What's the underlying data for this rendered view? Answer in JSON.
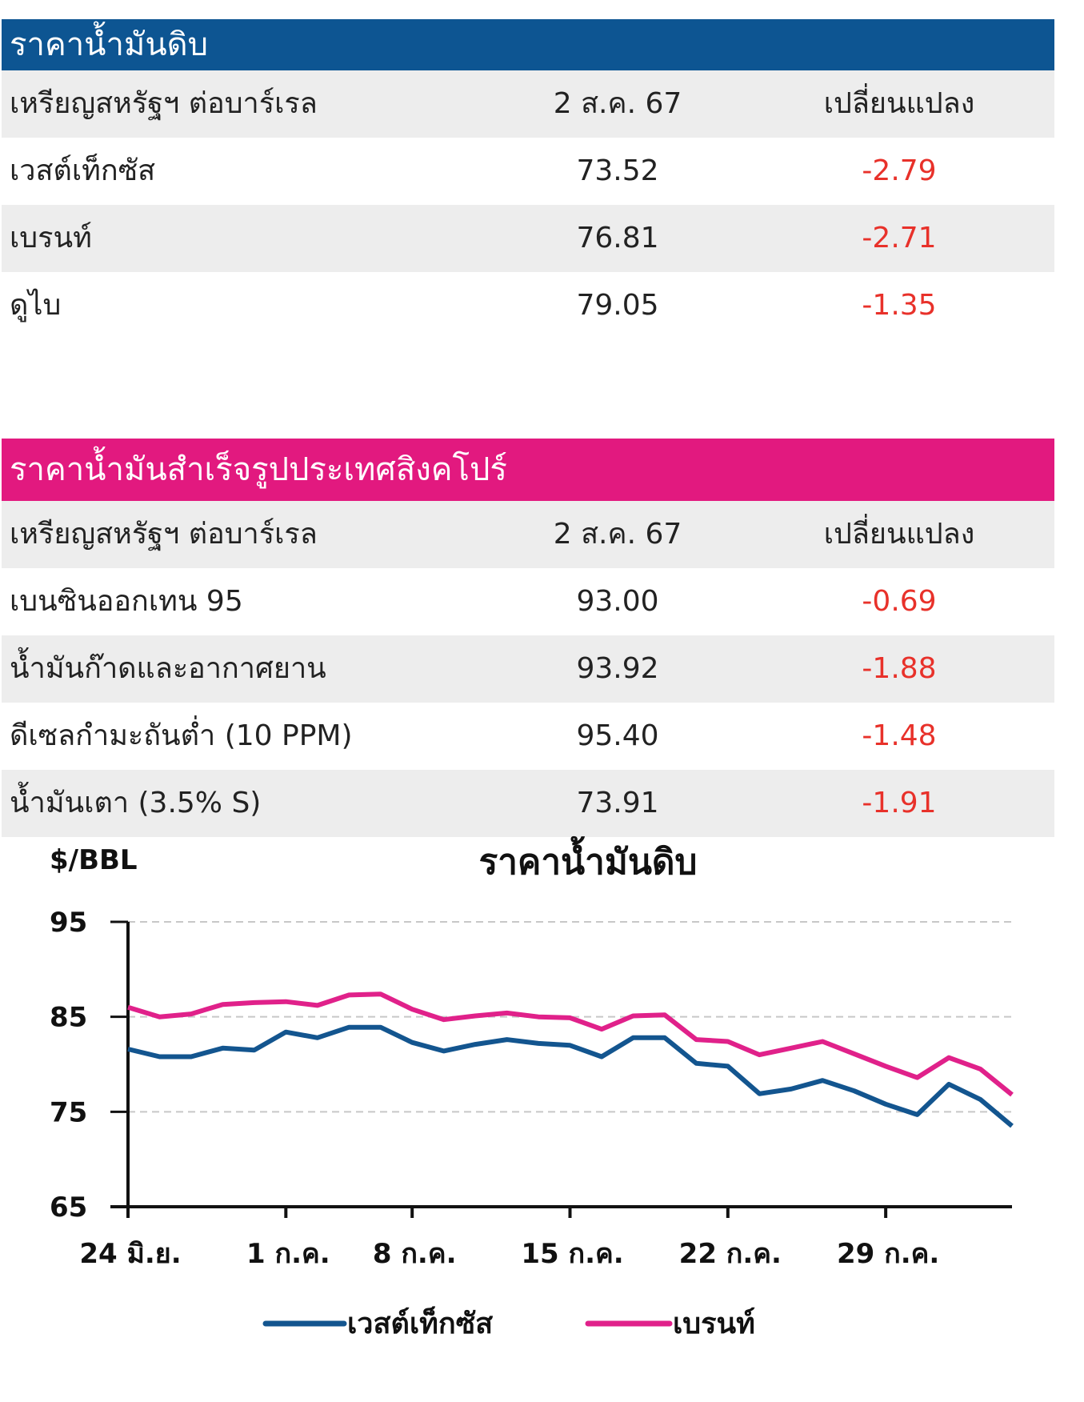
{
  "colors": {
    "crude_header": "#0d5592",
    "products_header": "#e2197f",
    "wti": "#13558f",
    "brent": "#e0218a",
    "negative": "#e8312a"
  },
  "crude": {
    "title": "ราคาน้ำมันดิบ",
    "col_unit": "เหรียญสหรัฐฯ ต่อบาร์เรล",
    "col_date": "2 ส.ค. 67",
    "col_change": "เปลี่ยนแปลง",
    "rows": [
      {
        "name": "เวสต์เท็กซัส",
        "price": "73.52",
        "change": "-2.79"
      },
      {
        "name": "เบรนท์",
        "price": "76.81",
        "change": "-2.71"
      },
      {
        "name": "ดูไบ",
        "price": "79.05",
        "change": "-1.35"
      }
    ]
  },
  "products": {
    "title": "ราคาน้ำมันสำเร็จรูปประเทศสิงคโปร์",
    "col_unit": "เหรียญสหรัฐฯ ต่อบาร์เรล",
    "col_date": "2 ส.ค. 67",
    "col_change": "เปลี่ยนแปลง",
    "rows": [
      {
        "name": "เบนซินออกเทน 95",
        "price": "93.00",
        "change": "-0.69"
      },
      {
        "name": "น้ำมันก๊าดและอากาศยาน",
        "price": "93.92",
        "change": "-1.88"
      },
      {
        "name": "ดีเซลกำมะถันต่ำ (10 PPM)",
        "price": "95.40",
        "change": "-1.48"
      },
      {
        "name": "น้ำมันเตา (3.5% S)",
        "price": "73.91",
        "change": "-1.91"
      }
    ]
  },
  "chart_data": {
    "type": "line",
    "title": "ราคาน้ำมันดิบ",
    "ylabel": "$/BBL",
    "ylim": [
      65,
      95
    ],
    "yticks": [
      "95",
      "85",
      "75",
      "65"
    ],
    "grid": "horizontal dashed",
    "legend_position": "bottom",
    "x": [
      "24 มิ.ย.",
      "25 มิ.ย.",
      "26 มิ.ย.",
      "27 มิ.ย.",
      "28 มิ.ย.",
      "1 ก.ค.",
      "2 ก.ค.",
      "3 ก.ค.",
      "5 ก.ค.",
      "8 ก.ค.",
      "9 ก.ค.",
      "10 ก.ค.",
      "11 ก.ค.",
      "12 ก.ค.",
      "15 ก.ค.",
      "16 ก.ค.",
      "17 ก.ค.",
      "18 ก.ค.",
      "19 ก.ค.",
      "22 ก.ค.",
      "23 ก.ค.",
      "24 ก.ค.",
      "25 ก.ค.",
      "26 ก.ค.",
      "29 ก.ค.",
      "30 ก.ค.",
      "31 ก.ค.",
      "1 ส.ค.",
      "2 ส.ค."
    ],
    "xticks": [
      "24 มิ.ย.",
      "1 ก.ค.",
      "8 ก.ค.",
      "15 ก.ค.",
      "22 ก.ค.",
      "29 ก.ค."
    ],
    "series": [
      {
        "name": "เวสต์เท็กซัส",
        "color": "#13558f",
        "values": [
          81.6,
          80.8,
          80.8,
          81.7,
          81.5,
          83.4,
          82.8,
          83.9,
          83.9,
          82.3,
          81.4,
          82.1,
          82.6,
          82.2,
          82.0,
          80.8,
          82.8,
          82.8,
          80.1,
          79.8,
          76.9,
          77.4,
          78.3,
          77.2,
          75.8,
          74.7,
          77.9,
          76.3,
          73.5
        ]
      },
      {
        "name": "เบรนท์",
        "color": "#e0218a",
        "values": [
          86.0,
          85.0,
          85.3,
          86.3,
          86.5,
          86.6,
          86.2,
          87.3,
          87.4,
          85.8,
          84.7,
          85.1,
          85.4,
          85.0,
          84.9,
          83.7,
          85.1,
          85.2,
          82.6,
          82.4,
          81.0,
          81.7,
          82.4,
          81.1,
          79.8,
          78.6,
          80.7,
          79.5,
          76.8
        ]
      }
    ]
  }
}
